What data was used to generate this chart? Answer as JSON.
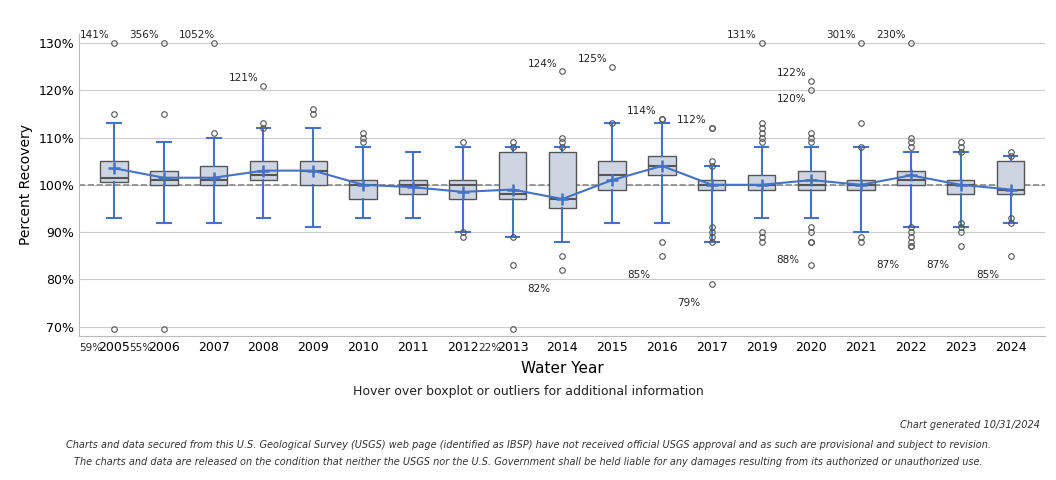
{
  "years": [
    2005,
    2006,
    2007,
    2008,
    2009,
    2010,
    2011,
    2012,
    2013,
    2014,
    2015,
    2016,
    2017,
    2019,
    2020,
    2021,
    2022,
    2023,
    2024
  ],
  "box_stats": {
    "2005": {
      "q1": 100.5,
      "median": 101.5,
      "q3": 105,
      "mean": 103.5,
      "whislo": 93,
      "whishi": 113
    },
    "2006": {
      "q1": 100,
      "median": 101,
      "q3": 103,
      "mean": 101.5,
      "whislo": 92,
      "whishi": 109
    },
    "2007": {
      "q1": 100,
      "median": 101,
      "q3": 104,
      "mean": 101.5,
      "whislo": 92,
      "whishi": 110
    },
    "2008": {
      "q1": 101,
      "median": 102,
      "q3": 105,
      "mean": 103,
      "whislo": 93,
      "whishi": 112
    },
    "2009": {
      "q1": 100,
      "median": 103,
      "q3": 105,
      "mean": 103,
      "whislo": 91,
      "whishi": 112
    },
    "2010": {
      "q1": 97,
      "median": 100,
      "q3": 101,
      "mean": 100,
      "whislo": 93,
      "whishi": 108
    },
    "2011": {
      "q1": 98,
      "median": 100,
      "q3": 101,
      "mean": 99.5,
      "whislo": 93,
      "whishi": 107
    },
    "2012": {
      "q1": 97,
      "median": 100,
      "q3": 101,
      "mean": 98.5,
      "whislo": 90,
      "whishi": 108
    },
    "2013": {
      "q1": 97,
      "median": 98,
      "q3": 107,
      "mean": 99,
      "whislo": 89,
      "whishi": 108
    },
    "2014": {
      "q1": 95,
      "median": 97,
      "q3": 107,
      "mean": 97,
      "whislo": 88,
      "whishi": 108
    },
    "2015": {
      "q1": 99,
      "median": 102,
      "q3": 105,
      "mean": 101,
      "whislo": 92,
      "whishi": 113
    },
    "2016": {
      "q1": 102,
      "median": 104,
      "q3": 106,
      "mean": 104,
      "whislo": 92,
      "whishi": 113
    },
    "2017": {
      "q1": 99,
      "median": 100,
      "q3": 101,
      "mean": 100,
      "whislo": 88,
      "whishi": 104
    },
    "2019": {
      "q1": 99,
      "median": 100,
      "q3": 102,
      "mean": 100,
      "whislo": 93,
      "whishi": 108
    },
    "2020": {
      "q1": 99,
      "median": 100,
      "q3": 103,
      "mean": 101,
      "whislo": 93,
      "whishi": 108
    },
    "2021": {
      "q1": 99,
      "median": 100,
      "q3": 101,
      "mean": 100,
      "whislo": 90,
      "whishi": 108
    },
    "2022": {
      "q1": 100,
      "median": 101,
      "q3": 103,
      "mean": 102,
      "whislo": 91,
      "whishi": 107
    },
    "2023": {
      "q1": 98,
      "median": 100,
      "q3": 101,
      "mean": 100,
      "whislo": 91,
      "whishi": 107
    },
    "2024": {
      "q1": 98,
      "median": 99,
      "q3": 105,
      "mean": 99,
      "whislo": 92,
      "whishi": 106
    }
  },
  "outliers": {
    "2005": [
      115
    ],
    "2006": [
      115
    ],
    "2007": [
      111
    ],
    "2008": [
      112,
      113
    ],
    "2009": [
      115,
      116
    ],
    "2010": [
      109,
      110,
      111
    ],
    "2011": [],
    "2012": [
      89,
      90,
      109
    ],
    "2013": [
      83,
      89,
      108,
      109
    ],
    "2014": [
      85,
      108,
      109,
      110
    ],
    "2015": [
      113
    ],
    "2016": [
      88,
      114
    ],
    "2017": [
      88,
      89,
      90,
      91,
      104,
      105,
      112
    ],
    "2019": [
      88,
      89,
      90,
      109,
      110,
      111,
      112,
      113
    ],
    "2020": [
      83,
      88,
      90,
      91,
      109,
      110,
      111
    ],
    "2021": [
      88,
      89,
      108,
      113
    ],
    "2022": [
      87,
      88,
      89,
      90,
      91,
      108,
      109,
      110
    ],
    "2023": [
      90,
      91,
      92,
      107,
      108,
      109
    ],
    "2024": [
      92,
      93,
      106,
      107
    ]
  },
  "labeled_outliers": {
    "2005": [
      {
        "val": 59,
        "label": "59%",
        "pos": "below",
        "display_val": 69.5
      },
      {
        "val": 130,
        "label": "141%",
        "pos": "above",
        "display_val": 130
      }
    ],
    "2006": [
      {
        "val": 55,
        "label": "55%",
        "pos": "below",
        "display_val": 69.5
      },
      {
        "val": 130,
        "label": "356%",
        "pos": "above",
        "display_val": 130
      }
    ],
    "2007": [
      {
        "val": 130,
        "label": "1052%",
        "pos": "above",
        "display_val": 130
      }
    ],
    "2008": [
      {
        "val": 121,
        "label": "121%",
        "pos": "above",
        "display_val": 121
      }
    ],
    "2013": [
      {
        "val": 55,
        "label": "22%",
        "pos": "below",
        "display_val": 69.5
      }
    ],
    "2014": [
      {
        "val": 82,
        "label": "82%",
        "pos": "below",
        "display_val": 82
      },
      {
        "val": 124,
        "label": "124%",
        "pos": "above",
        "display_val": 124
      }
    ],
    "2015": [
      {
        "val": 125,
        "label": "125%",
        "pos": "above",
        "display_val": 125
      }
    ],
    "2016": [
      {
        "val": 85,
        "label": "85%",
        "pos": "below",
        "display_val": 85
      },
      {
        "val": 114,
        "label": "114%",
        "pos": "above",
        "display_val": 114
      }
    ],
    "2017": [
      {
        "val": 79,
        "label": "79%",
        "pos": "below",
        "display_val": 79
      },
      {
        "val": 112,
        "label": "112%",
        "pos": "above",
        "display_val": 112
      }
    ],
    "2019": [
      {
        "val": 130,
        "label": "131%",
        "pos": "above",
        "display_val": 130
      }
    ],
    "2020": [
      {
        "val": 88,
        "label": "88%",
        "pos": "below",
        "display_val": 88
      },
      {
        "val": 122,
        "label": "122%",
        "pos": "above",
        "display_val": 122
      },
      {
        "val": 120,
        "label": "120%",
        "pos": "above2",
        "display_val": 120
      }
    ],
    "2021": [
      {
        "val": 130,
        "label": "301%",
        "pos": "above",
        "display_val": 130
      }
    ],
    "2022": [
      {
        "val": 87,
        "label": "87%",
        "pos": "below",
        "display_val": 87
      },
      {
        "val": 130,
        "label": "230%",
        "pos": "above",
        "display_val": 130
      }
    ],
    "2023": [
      {
        "val": 87,
        "label": "87%",
        "pos": "below",
        "display_val": 87
      }
    ],
    "2024": [
      {
        "val": 85,
        "label": "85%",
        "pos": "below",
        "display_val": 85
      }
    ]
  },
  "mean_line": [
    103.5,
    101.5,
    101.5,
    103,
    103,
    100,
    99.5,
    98.5,
    99,
    97,
    101,
    104,
    100,
    100,
    101,
    100,
    102,
    100,
    99
  ],
  "box_color": "#cdd5e3",
  "box_edge_color": "#555555",
  "whisker_color": "#4472c4",
  "median_color": "#555555",
  "mean_color": "#4472c4",
  "mean_line_color": "#4472c4",
  "outlier_edge_color": "#555555",
  "reference_line_y": 100,
  "reference_line_color": "#888888",
  "ylabel": "Percent Recovery",
  "xlabel": "Water Year",
  "ylim": [
    68,
    132
  ],
  "yticks": [
    70,
    80,
    90,
    100,
    110,
    120,
    130
  ],
  "ytick_labels": [
    "70%",
    "80%",
    "90%",
    "100%",
    "110%",
    "120%",
    "130%"
  ],
  "subtitle": "Hover over boxplot or outliers for additional information",
  "footnote1": "Chart generated 10/31/2024",
  "footnote2": "Charts and data secured from this U.S. Geological Survey (USGS) web page (identified as IBSP) have not received official USGS approval and as such are provisional and subject to revision.",
  "footnote3": "The charts and data are released on the condition that neither the USGS nor the U.S. Government shall be held liable for any damages resulting from its authorized or unauthorized use.",
  "background_color": "#ffffff",
  "plot_background_color": "#ffffff",
  "grid_color": "#cccccc"
}
